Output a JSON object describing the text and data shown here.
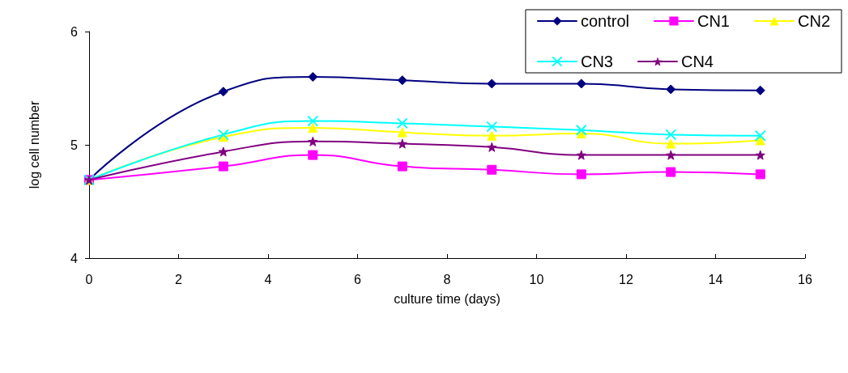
{
  "chart_data": {
    "type": "line",
    "xlabel": "culture time (days)",
    "ylabel": "log cell number",
    "x": [
      0,
      3,
      5,
      7,
      9,
      11,
      13,
      15
    ],
    "xlim": [
      0,
      16
    ],
    "xticks": [
      0,
      2,
      4,
      6,
      8,
      10,
      12,
      14,
      16
    ],
    "ylim": [
      4,
      6
    ],
    "yticks": [
      4,
      5,
      6
    ],
    "grid": false,
    "legend": "top right",
    "line_style": "solid",
    "series": [
      {
        "name": "control",
        "color": "#000080",
        "marker": "diamond",
        "values": [
          4.69,
          5.47,
          5.6,
          5.57,
          5.54,
          5.54,
          5.49,
          5.48
        ]
      },
      {
        "name": "CN1",
        "color": "#ff00ff",
        "marker": "square",
        "values": [
          4.69,
          4.81,
          4.91,
          4.81,
          4.78,
          4.74,
          4.76,
          4.74
        ]
      },
      {
        "name": "CN2",
        "color": "#ffff00",
        "marker": "triangle",
        "values": [
          4.69,
          5.07,
          5.15,
          5.11,
          5.08,
          5.1,
          5.01,
          5.04
        ]
      },
      {
        "name": "CN3",
        "color": "#00ffff",
        "marker": "cross",
        "values": [
          4.69,
          5.09,
          5.21,
          5.19,
          5.16,
          5.13,
          5.09,
          5.08
        ]
      },
      {
        "name": "CN4",
        "color": "#800080",
        "marker": "star",
        "values": [
          4.69,
          4.94,
          5.03,
          5.01,
          4.98,
          4.91,
          4.91,
          4.91
        ]
      }
    ]
  }
}
